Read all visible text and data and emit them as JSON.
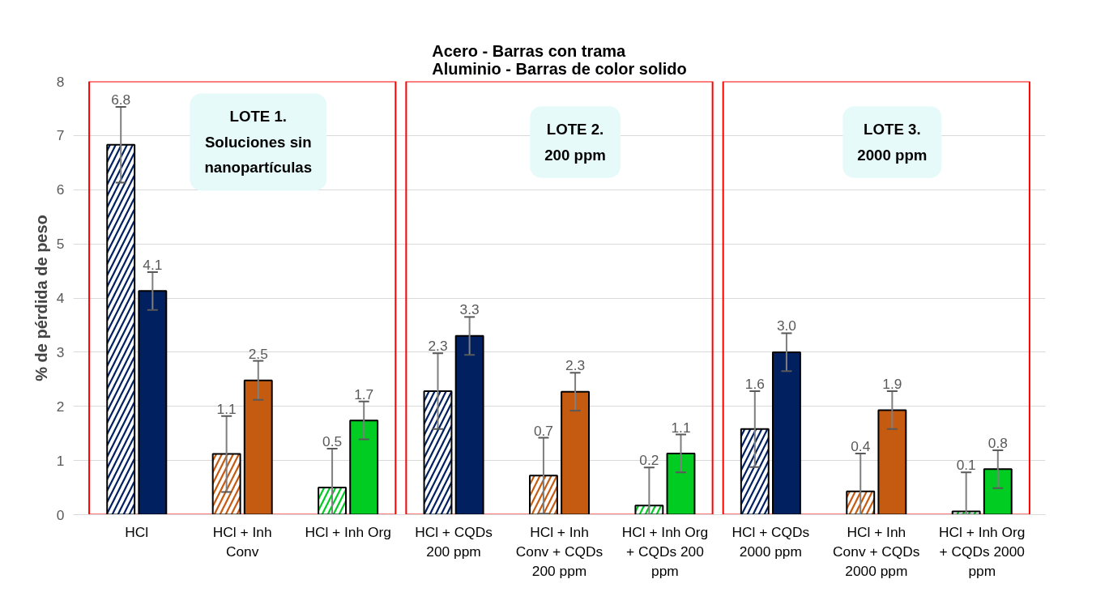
{
  "chart_data": {
    "type": "bar",
    "title": "Acero - Barras con trama\nAluminio - Barras de color solido",
    "ylabel": "% de pérdida de peso",
    "categories": [
      "HCl",
      "HCl + Inh Conv",
      "HCl + Inh Org",
      "HCl + CQDs 200 ppm",
      "HCl + Inh Conv + CQDs 200 ppm",
      "HCl + Inh Org + CQDs 200 ppm",
      "HCl + CQDs 2000 ppm",
      "HCl + Inh Conv + CQDs 2000 ppm",
      "HCl + Inh Org + CQDs 2000 ppm"
    ],
    "series": [
      {
        "colors": [
          "#002060",
          "#c55a11",
          "#00cc22",
          "#002060",
          "#c55a11",
          "#00cc22",
          "#002060",
          "#c55a11",
          "#00cc22"
        ],
        "values": [
          6.83,
          1.12,
          0.5,
          2.28,
          0.72,
          0.17,
          1.58,
          0.43,
          0.06
        ],
        "value_labels": [
          "6.8",
          "1.1",
          "0.5",
          "2.3",
          "0.7",
          "0.2",
          "1.6",
          "0.4",
          "0.1"
        ],
        "errors": [
          0.7,
          0.7,
          [
            0,
            1.22
          ],
          0.7,
          [
            0.02,
            1.42
          ],
          [
            0,
            0.87
          ],
          0.7,
          [
            0,
            1.13
          ],
          [
            0,
            0.78
          ]
        ]
      },
      {
        "colors": [
          "#002060",
          "#c55a11",
          "#00cc22",
          "#002060",
          "#c55a11",
          "#00cc22",
          "#002060",
          "#c55a11",
          "#00cc22"
        ],
        "values": [
          4.13,
          2.48,
          1.74,
          3.3,
          2.27,
          1.13,
          3.0,
          1.93,
          0.84
        ],
        "value_labels": [
          "4.1",
          "2.5",
          "1.7",
          "3.3",
          "2.3",
          "1.1",
          "3.0",
          "1.9",
          "0.8"
        ],
        "errors": [
          0.35,
          0.36,
          0.35,
          0.35,
          0.35,
          0.35,
          0.35,
          0.35,
          0.35
        ]
      }
    ],
    "annotations": [
      "LOTE 1.\nSoluciones sin\nnanopartículas",
      "LOTE 2.\n200 ppm",
      "LOTE 3.\n2000 ppm"
    ],
    "ylim": [
      0,
      8
    ],
    "yticks": [
      0,
      1,
      2,
      3,
      4,
      5,
      6,
      7,
      8
    ],
    "grid": "y"
  }
}
